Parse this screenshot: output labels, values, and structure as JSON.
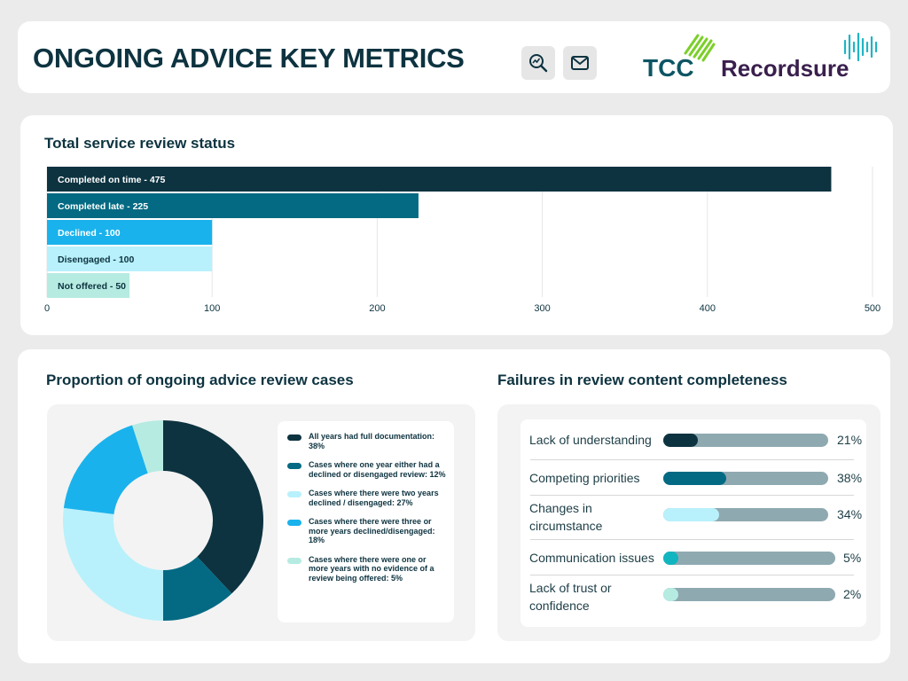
{
  "header": {
    "title": "ONGOING ADVICE KEY METRICS",
    "search_icon": "search-analytics-icon",
    "mail_icon": "mail-icon",
    "logos": {
      "tcc": "TCC",
      "recordsure": "Recordsure"
    }
  },
  "colors": {
    "dark": "#0d3340",
    "teal": "#046a83",
    "light_cyan": "#b8f1fb",
    "sky": "#1ab2ec",
    "mint": "#b6ebe2",
    "track": "#8fa9b1",
    "bright_teal": "#11b5bf"
  },
  "chart_data": [
    {
      "type": "bar",
      "orientation": "horizontal",
      "title": "Total service review status",
      "categories": [
        "Completed on time - 475",
        "Completed late - 225",
        "Declined - 100",
        "Disengaged - 100",
        "Not offered - 50"
      ],
      "values": [
        475,
        225,
        100,
        100,
        50
      ],
      "bar_colors": [
        "#0d3340",
        "#046a83",
        "#1ab2ec",
        "#b8f1fb",
        "#b6ebe2"
      ],
      "label_colors": [
        "#ffffff",
        "#ffffff",
        "#ffffff",
        "#0d3340",
        "#0d3340"
      ],
      "xlim": [
        0,
        500
      ],
      "xticks": [
        0,
        100,
        200,
        300,
        400,
        500
      ],
      "grid": true
    },
    {
      "type": "pie",
      "donut": true,
      "title": "Proportion of ongoing advice review cases",
      "slices": [
        {
          "label": "All years had full documentation: 38%",
          "value": 38,
          "color": "#0d3340"
        },
        {
          "label": "Cases where one year either had a declined or disengaged review: 12%",
          "value": 12,
          "color": "#046a83"
        },
        {
          "label": "Cases where there were two years declined / disengaged: 27%",
          "value": 27,
          "color": "#b8f1fb"
        },
        {
          "label": "Cases where there were three or more years declined/disengaged: 18%",
          "value": 18,
          "color": "#1ab2ec"
        },
        {
          "label": "Cases where there were one or more years with no evidence of a review being offered: 5%",
          "value": 5,
          "color": "#b6ebe2"
        }
      ],
      "legend_position": "right"
    },
    {
      "type": "bar",
      "orientation": "horizontal",
      "title": "Failures in review content completeness",
      "categories": [
        "Lack of understanding",
        "Competing priorities",
        "Changes in circumstance",
        "Communication issues",
        "Lack of trust or confidence"
      ],
      "values": [
        21,
        38,
        34,
        5,
        2
      ],
      "value_labels": [
        "21%",
        "38%",
        "34%",
        "5%",
        "2%"
      ],
      "fill_colors": [
        "#0d3340",
        "#046a83",
        "#b8f1fb",
        "#11b5bf",
        "#b6ebe2"
      ],
      "xlim": [
        0,
        100
      ]
    }
  ]
}
